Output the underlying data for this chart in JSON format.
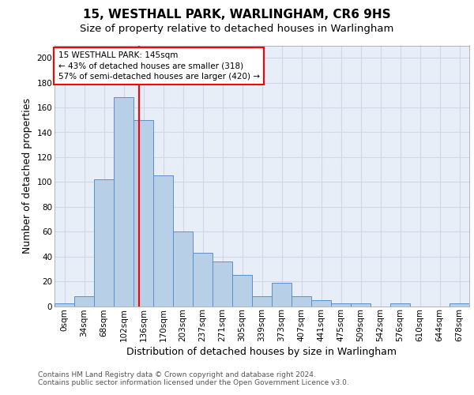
{
  "title_line1": "15, WESTHALL PARK, WARLINGHAM, CR6 9HS",
  "title_line2": "Size of property relative to detached houses in Warlingham",
  "xlabel": "Distribution of detached houses by size in Warlingham",
  "ylabel": "Number of detached properties",
  "footer_line1": "Contains HM Land Registry data © Crown copyright and database right 2024.",
  "footer_line2": "Contains public sector information licensed under the Open Government Licence v3.0.",
  "categories": [
    "0sqm",
    "34sqm",
    "68sqm",
    "102sqm",
    "136sqm",
    "170sqm",
    "203sqm",
    "237sqm",
    "271sqm",
    "305sqm",
    "339sqm",
    "373sqm",
    "407sqm",
    "441sqm",
    "475sqm",
    "509sqm",
    "542sqm",
    "576sqm",
    "610sqm",
    "644sqm",
    "678sqm"
  ],
  "bar_heights": [
    2,
    8,
    102,
    168,
    150,
    105,
    60,
    43,
    36,
    25,
    8,
    19,
    8,
    5,
    2,
    2,
    0,
    2,
    0,
    0,
    2
  ],
  "bar_color": "#b8cfe8",
  "bar_edge_color": "#5b8fc9",
  "ylim": [
    0,
    210
  ],
  "yticks": [
    0,
    20,
    40,
    60,
    80,
    100,
    120,
    140,
    160,
    180,
    200
  ],
  "vline_x": 4.26,
  "vline_color": "red",
  "annotation_text": "15 WESTHALL PARK: 145sqm\n← 43% of detached houses are smaller (318)\n57% of semi-detached houses are larger (420) →",
  "bg_color": "#e8eef8",
  "grid_color": "#d0d8e8",
  "title_fontsize": 11,
  "subtitle_fontsize": 9.5,
  "axis_label_fontsize": 9,
  "tick_fontsize": 7.5,
  "footer_fontsize": 6.5,
  "ann_fontsize": 7.5
}
